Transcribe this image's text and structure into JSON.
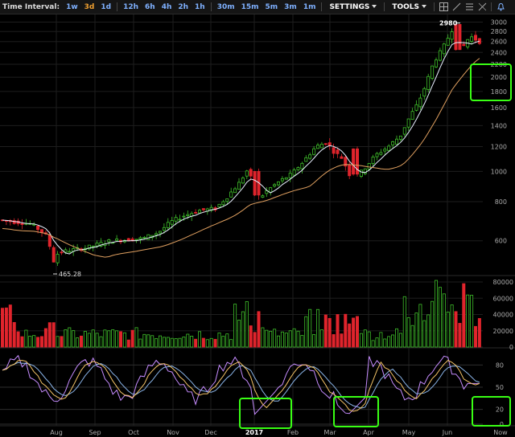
{
  "toolbar": {
    "interval_label": "Time Interval:",
    "intervals": [
      "1w",
      "3d",
      "1d",
      "12h",
      "6h",
      "4h",
      "2h",
      "1h",
      "30m",
      "15m",
      "5m",
      "3m",
      "1m"
    ],
    "active_interval": "3d",
    "settings_label": "SETTINGS",
    "tools_label": "TOOLS",
    "tool_icons": [
      "crosshair-icon",
      "line-draw-icon",
      "fib-retracement-icon",
      "eraser-icon",
      "alert-bell-icon"
    ]
  },
  "chart_data": [
    {
      "type": "candlestick",
      "panel": "price",
      "y_scale": "log",
      "ylim": [
        470,
        3100
      ],
      "y_ticks": [
        "3000",
        "2800",
        "2600",
        "2400",
        "2200",
        "2000",
        "1800",
        "1600",
        "1400",
        "1200",
        "1000",
        "800",
        "600"
      ],
      "x_months": [
        "Aug",
        "Sep",
        "Oct",
        "Nov",
        "Dec",
        "2017",
        "Feb",
        "Mar",
        "Apr",
        "May",
        "Jun",
        "Now"
      ],
      "annotations": {
        "high_label": "2980",
        "low_label": "465.28"
      },
      "series": [
        "price-candles",
        "short-moving-average",
        "long-moving-average"
      ]
    },
    {
      "type": "bar",
      "panel": "volume",
      "ylim": [
        0,
        85000
      ],
      "y_ticks": [
        "80000",
        "60000",
        "40000",
        "20000",
        "0"
      ]
    },
    {
      "type": "line",
      "panel": "stochastic-rsi",
      "ylim": [
        0,
        100
      ],
      "y_ticks": [
        "80",
        "50",
        "20",
        "0"
      ]
    }
  ],
  "colors": {
    "up": "#3fbf2a",
    "down": "#e0242c",
    "ma_short": "#e8f0ff",
    "ma_long": "#e0a060",
    "osc_k": "#c68cff",
    "osc_d": "#f5c468",
    "osc_s": "#8ab4e8",
    "highlight": "#39ff14",
    "grid": "#1e1e1e"
  }
}
